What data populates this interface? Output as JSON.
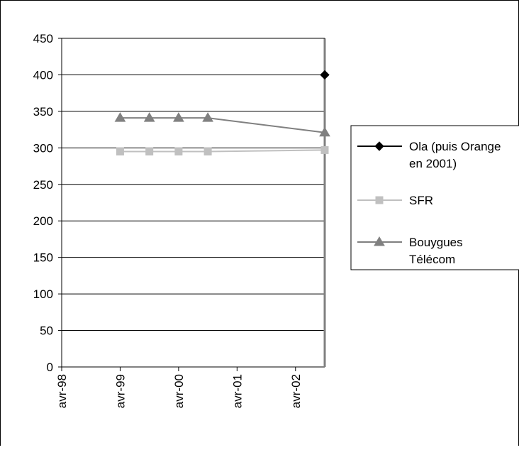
{
  "chart_data": {
    "type": "line",
    "title": "",
    "xlabel": "",
    "ylabel": "",
    "ylim": [
      0,
      450
    ],
    "y_ticks": [
      0,
      50,
      100,
      150,
      200,
      250,
      300,
      350,
      400,
      450
    ],
    "x_ticks": [
      "avr-98",
      "avr-99",
      "avr-00",
      "avr-01",
      "avr-02"
    ],
    "x_range": [
      "1998-04",
      "2002-10"
    ],
    "grid": "horizontal",
    "legend_position": "right",
    "series": [
      {
        "name": "Ola (puis Orange en 2001)",
        "marker": "diamond",
        "color": "#000000",
        "points": [
          {
            "x": "2002-10",
            "y": 400
          }
        ]
      },
      {
        "name": "SFR",
        "marker": "square",
        "color": "#c0c0c0",
        "points": [
          {
            "x": "1999-04",
            "y": 295
          },
          {
            "x": "1999-10",
            "y": 295
          },
          {
            "x": "2000-04",
            "y": 295
          },
          {
            "x": "2000-10",
            "y": 295
          },
          {
            "x": "2002-10",
            "y": 297
          }
        ]
      },
      {
        "name": "Bouygues Télécom",
        "marker": "triangle",
        "color": "#808080",
        "points": [
          {
            "x": "1999-04",
            "y": 341
          },
          {
            "x": "1999-10",
            "y": 341
          },
          {
            "x": "2000-04",
            "y": 341
          },
          {
            "x": "2000-10",
            "y": 341
          },
          {
            "x": "2002-10",
            "y": 321
          }
        ]
      }
    ],
    "legend_lines": [
      [
        "Ola (puis Orange",
        "en 2001)"
      ],
      [
        "SFR"
      ],
      [
        "Bouygues",
        "Télécom"
      ]
    ]
  }
}
